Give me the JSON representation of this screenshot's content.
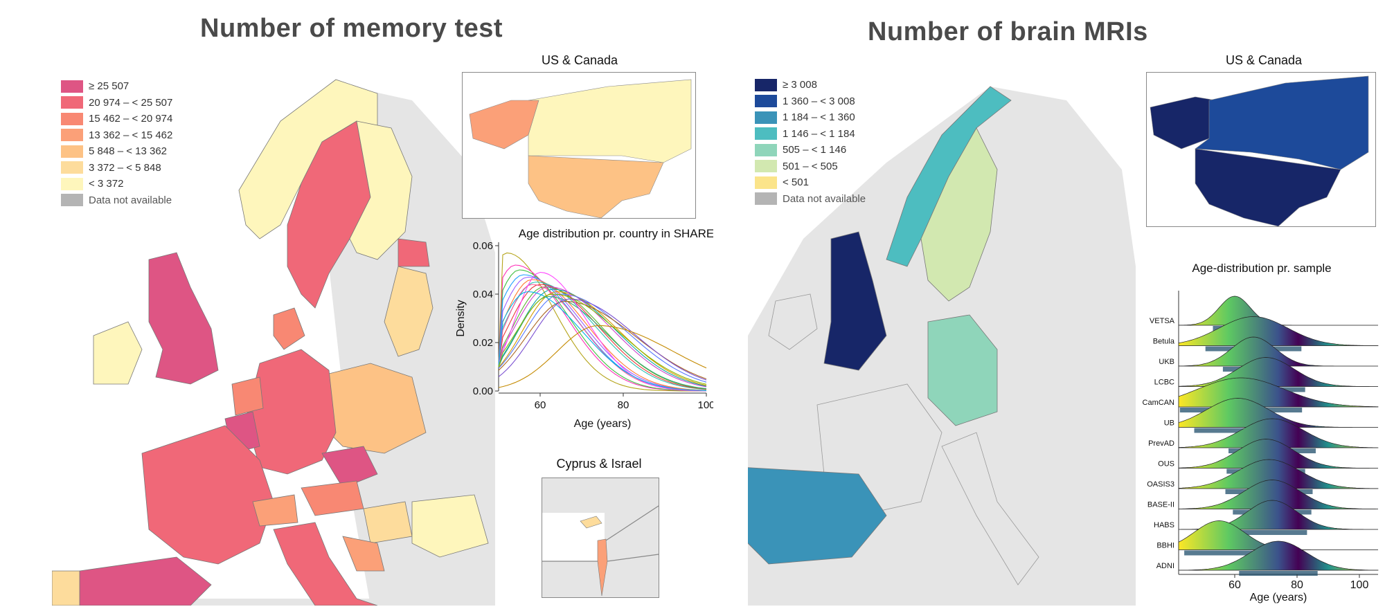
{
  "left_panel": {
    "title": "Number of memory test",
    "legend": [
      {
        "label": "≥ 25 507",
        "color": "#de5584"
      },
      {
        "label": "20 974 – < 25 507",
        "color": "#f06878"
      },
      {
        "label": "15 462 – < 20 974",
        "color": "#f88873"
      },
      {
        "label": "13 362 – < 15 462",
        "color": "#fba078"
      },
      {
        "label": "5 848 – < 13 362",
        "color": "#fdc285"
      },
      {
        "label": "3 372 – < 5 848",
        "color": "#fddc9c"
      },
      {
        "label": "< 3 372",
        "color": "#fef6bc"
      },
      {
        "label": "Data not available",
        "color": "#b4b4b4"
      }
    ],
    "inset_us_canada_title": "US & Canada",
    "inset_cyprus_israel_title": "Cyprus & Israel",
    "density_chart": {
      "chart_data": {
        "type": "line",
        "title": "Age distribution pr. country in SHARE",
        "xlabel": "Age (years)",
        "ylabel": "Density",
        "x_ticks": [
          "60",
          "80",
          "100"
        ],
        "y_ticks": [
          "0.00",
          "0.02",
          "0.04",
          "0.06"
        ],
        "xlim": [
          50,
          100
        ],
        "ylim": [
          0,
          0.06
        ],
        "series": [
          {
            "color": "#b5a41a",
            "peak_age": 52,
            "peak": 0.057,
            "spread": 11
          },
          {
            "color": "#ff2fb7",
            "peak_age": 54,
            "peak": 0.052,
            "spread": 12
          },
          {
            "color": "#3fbf40",
            "peak_age": 55,
            "peak": 0.05,
            "spread": 12
          },
          {
            "color": "#1e9fff",
            "peak_age": 56,
            "peak": 0.048,
            "spread": 13
          },
          {
            "color": "#9b5dff",
            "peak_age": 57,
            "peak": 0.047,
            "spread": 13
          },
          {
            "color": "#ff7a2f",
            "peak_age": 58,
            "peak": 0.046,
            "spread": 13
          },
          {
            "color": "#2fc2b5",
            "peak_age": 59,
            "peak": 0.045,
            "spread": 14
          },
          {
            "color": "#e83a3a",
            "peak_age": 60,
            "peak": 0.044,
            "spread": 14
          },
          {
            "color": "#5ab12f",
            "peak_age": 61,
            "peak": 0.043,
            "spread": 14
          },
          {
            "color": "#cc44cc",
            "peak_age": 62,
            "peak": 0.043,
            "spread": 15
          },
          {
            "color": "#0fa3a3",
            "peak_age": 63,
            "peak": 0.042,
            "spread": 15
          },
          {
            "color": "#d69a00",
            "peak_age": 64,
            "peak": 0.041,
            "spread": 15
          },
          {
            "color": "#5577ff",
            "peak_age": 65,
            "peak": 0.04,
            "spread": 16
          },
          {
            "color": "#ff5599",
            "peak_age": 58,
            "peak": 0.044,
            "spread": 12
          },
          {
            "color": "#33aa77",
            "peak_age": 62,
            "peak": 0.039,
            "spread": 14
          },
          {
            "color": "#aa6622",
            "peak_age": 66,
            "peak": 0.037,
            "spread": 17
          },
          {
            "color": "#ff44ff",
            "peak_age": 60,
            "peak": 0.049,
            "spread": 11
          },
          {
            "color": "#00b3e6",
            "peak_age": 57,
            "peak": 0.041,
            "spread": 13
          },
          {
            "color": "#88b800",
            "peak_age": 63,
            "peak": 0.04,
            "spread": 16
          },
          {
            "color": "#7a4fd1",
            "peak_age": 67,
            "peak": 0.038,
            "spread": 16
          },
          {
            "color": "#c48a00",
            "peak_age": 74,
            "peak": 0.027,
            "spread": 18
          }
        ]
      }
    }
  },
  "right_panel": {
    "title": "Number of brain MRIs",
    "legend": [
      {
        "label": "≥ 3 008",
        "color": "#172668"
      },
      {
        "label": "1 360 – < 3 008",
        "color": "#1d4a9a"
      },
      {
        "label": "1 184 – < 1 360",
        "color": "#3a93b8"
      },
      {
        "label": "1 146 – < 1 184",
        "color": "#4dbdc0"
      },
      {
        "label": "505 – < 1 146",
        "color": "#8fd5ba"
      },
      {
        "label": "501 – < 505",
        "color": "#d2e8b0"
      },
      {
        "label": "< 501",
        "color": "#fbe48a"
      },
      {
        "label": "Data not available",
        "color": "#b4b4b4"
      }
    ],
    "inset_us_canada_title": "US & Canada",
    "ridge_chart": {
      "chart_data": {
        "type": "area",
        "title": "Age-distribution pr. sample",
        "xlabel": "Age (years)",
        "x_ticks": [
          "60",
          "80",
          "100"
        ],
        "xlim": [
          42,
          106
        ],
        "categories": [
          "VETSA",
          "Betula",
          "UKB",
          "LCBC",
          "CamCAN",
          "UB",
          "PrevAD",
          "OUS",
          "OASIS3",
          "BASE-II",
          "HABS",
          "BBHI",
          "ADNI"
        ],
        "peaks": [
          60,
          66,
          66,
          70,
          62,
          61,
          72,
          70,
          71,
          72,
          72,
          55,
          74
        ],
        "spreads": [
          5,
          11,
          7,
          9,
          14,
          10,
          10,
          9,
          10,
          9,
          8,
          8,
          9
        ]
      }
    }
  }
}
